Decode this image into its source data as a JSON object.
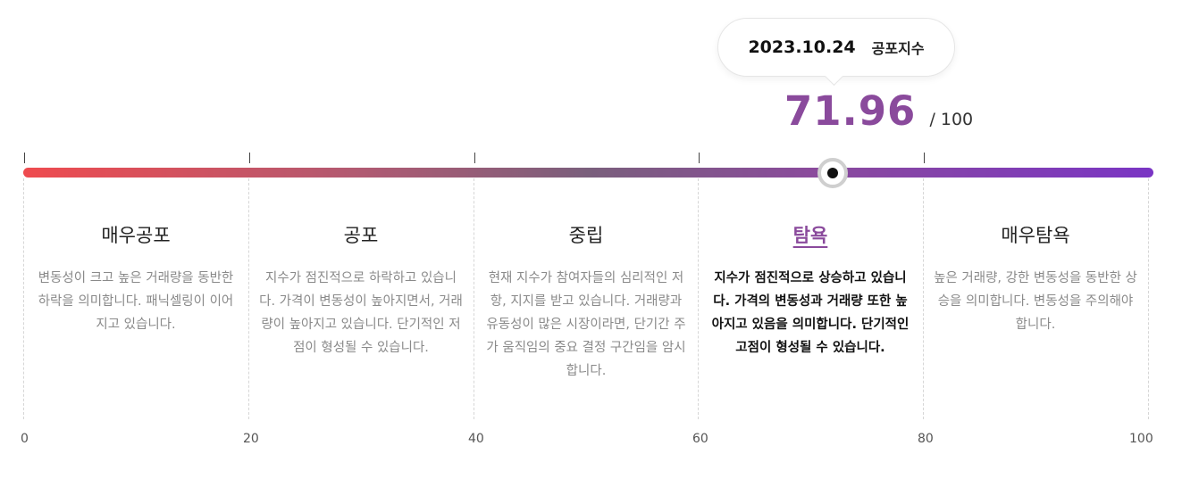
{
  "tooltip": {
    "date": "2023.10.24",
    "label": "공포지수"
  },
  "score": {
    "value": "71.96",
    "max": "/ 100",
    "fraction": 0.7196
  },
  "colors": {
    "accent": "#8a4a9c",
    "gradient_start": "#ef4b4f",
    "gradient_end": "#7a35c4"
  },
  "zones": [
    {
      "title": "매우공포",
      "desc": "변동성이 크고 높은 거래량을 동반한 하락을 의미합니다. 패닉셀링이 이어지고 있습니다."
    },
    {
      "title": "공포",
      "desc": "지수가 점진적으로 하락하고 있습니다. 가격이 변동성이 높아지면서, 거래량이 높아지고 있습니다. 단기적인 저점이 형성될 수 있습니다."
    },
    {
      "title": "중립",
      "desc": "현재 지수가 참여자들의 심리적인 저항, 지지를 받고 있습니다. 거래량과 유동성이 많은 시장이라면, 단기간 주가 움직임의 중요 결정 구간임을 암시합니다."
    },
    {
      "title": "탐욕",
      "desc": "지수가 점진적으로 상승하고 있습니다. 가격의 변동성과 거래량 또한 높아지고 있음을 의미합니다. 단기적인 고점이 형성될 수 있습니다.",
      "active": true
    },
    {
      "title": "매우탐욕",
      "desc": "높은 거래량, 강한 변동성을 동반한 상승을 의미합니다. 변동성을 주의해야 합니다."
    }
  ],
  "axis": [
    "0",
    "20",
    "40",
    "60",
    "80",
    "100"
  ]
}
